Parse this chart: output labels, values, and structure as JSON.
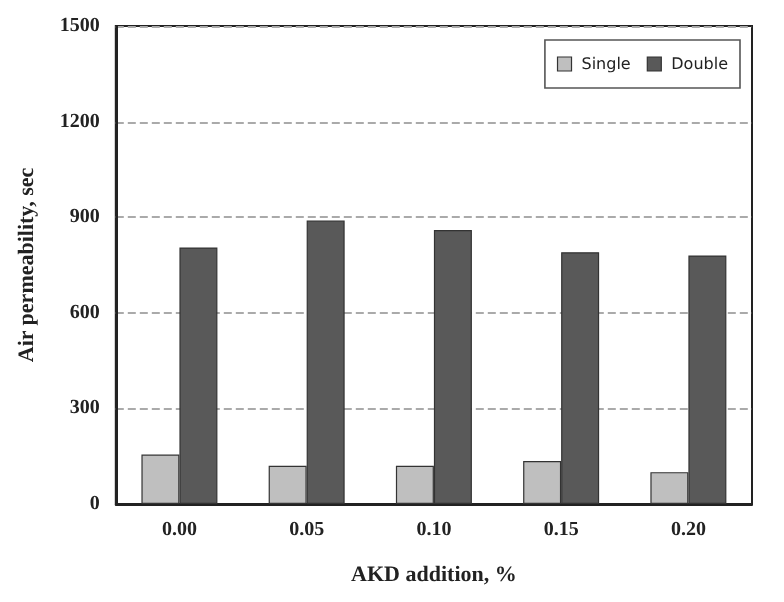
{
  "chart_data": {
    "type": "bar",
    "xlabel": "AKD addition, %",
    "ylabel": "Air permeability, sec",
    "categories": [
      "0.00",
      "0.05",
      "0.10",
      "0.15",
      "0.20"
    ],
    "series": [
      {
        "name": "Single",
        "color": "#bfbfbf",
        "values": [
          155,
          120,
          120,
          135,
          100
        ]
      },
      {
        "name": "Double",
        "color": "#595959",
        "values": [
          805,
          890,
          860,
          790,
          780
        ]
      }
    ],
    "ylim": [
      0,
      1500
    ],
    "yticks": [
      0,
      300,
      600,
      900,
      1200,
      1500
    ],
    "grid": "y",
    "legend": "top right"
  }
}
